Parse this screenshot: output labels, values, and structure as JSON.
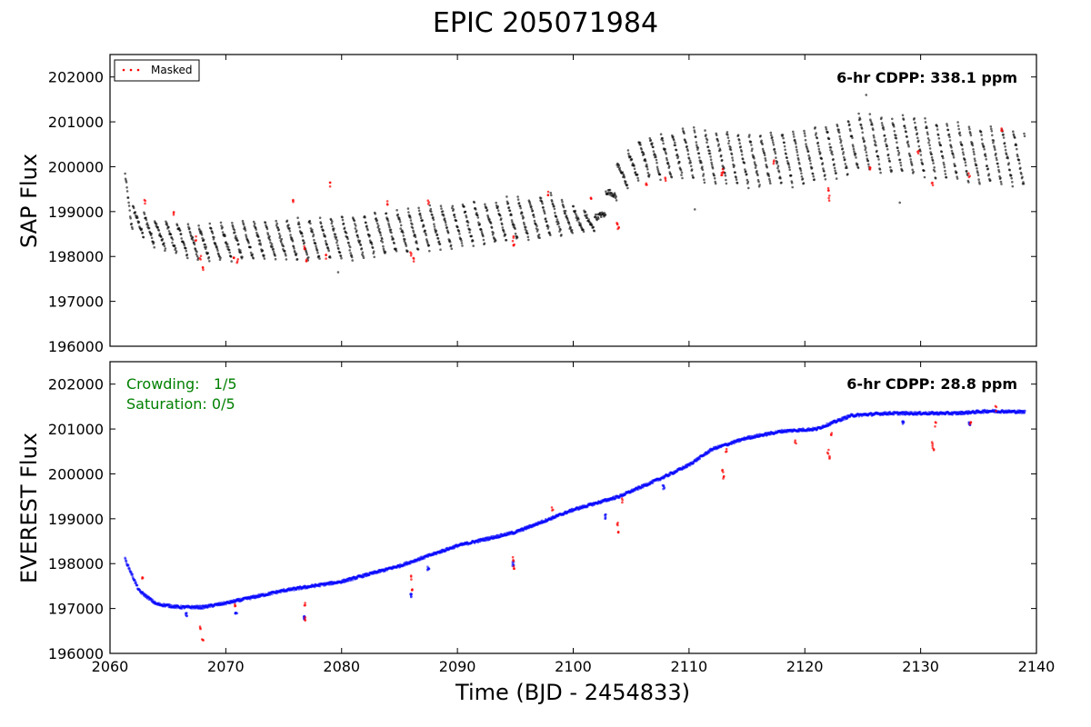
{
  "figure": {
    "title": "EPIC 205071984",
    "xlabel": "Time (BJD - 2454833)"
  },
  "chart_data": [
    {
      "type": "scatter",
      "panel": "top",
      "ylabel": "SAP Flux",
      "xlim": [
        2060,
        2140
      ],
      "ylim": [
        196000,
        202500
      ],
      "xticks": [
        2060,
        2070,
        2080,
        2090,
        2100,
        2110,
        2120,
        2130,
        2140
      ],
      "yticks": [
        196000,
        197000,
        198000,
        199000,
        200000,
        201000,
        202000
      ],
      "annotation": "6-hr CDPP: 338.1 ppm",
      "legend": {
        "position": "top-left",
        "entries": [
          {
            "label": "Masked",
            "color": "#ff0000"
          }
        ]
      },
      "grid": false,
      "series": [
        {
          "name": "",
          "color": "#000000",
          "trend": [
            [
              2061.3,
              199800
            ],
            [
              2061.8,
              198900
            ],
            [
              2064,
              198500
            ],
            [
              2068,
              198300
            ],
            [
              2072,
              198350
            ],
            [
              2080,
              198400
            ],
            [
              2090,
              198700
            ],
            [
              2098,
              198900
            ],
            [
              2102,
              198750
            ],
            [
              2104,
              199800
            ],
            [
              2106,
              200200
            ],
            [
              2110,
              200300
            ],
            [
              2115,
              200150
            ],
            [
              2120,
              200200
            ],
            [
              2125,
              200550
            ],
            [
              2130,
              200450
            ],
            [
              2135,
              200250
            ],
            [
              2139,
              200200
            ]
          ],
          "scatter_width": [
            [
              2061.3,
              100
            ],
            [
              2062,
              300
            ],
            [
              2068,
              500
            ],
            [
              2080,
              600
            ],
            [
              2090,
              600
            ],
            [
              2098,
              600
            ],
            [
              2102,
              200
            ],
            [
              2104,
              500
            ],
            [
              2110,
              700
            ],
            [
              2125,
              800
            ],
            [
              2139,
              800
            ]
          ],
          "outliers": [
            [
              2125.3,
              201600
            ],
            [
              2128.2,
              199200
            ],
            [
              2110.5,
              199050
            ],
            [
              2079.7,
              197650
            ]
          ]
        },
        {
          "name": "Masked",
          "color": "#ff0000",
          "points": [
            [
              2063.0,
              199200
            ],
            [
              2065.5,
              198950
            ],
            [
              2067.4,
              198400
            ],
            [
              2067.8,
              197950
            ],
            [
              2068.0,
              197750
            ],
            [
              2070.7,
              198000
            ],
            [
              2071.0,
              197900
            ],
            [
              2075.8,
              199200
            ],
            [
              2076.8,
              198200
            ],
            [
              2077.0,
              197900
            ],
            [
              2078.7,
              198000
            ],
            [
              2079.0,
              199600
            ],
            [
              2084.0,
              199200
            ],
            [
              2086.0,
              198050
            ],
            [
              2086.2,
              197950
            ],
            [
              2087.5,
              199200
            ],
            [
              2094.8,
              198400
            ],
            [
              2094.9,
              198300
            ],
            [
              2097.8,
              199400
            ],
            [
              2101.5,
              199300
            ],
            [
              2103.8,
              198700
            ],
            [
              2103.9,
              198600
            ],
            [
              2106.3,
              199600
            ],
            [
              2108.0,
              199700
            ],
            [
              2112.8,
              199800
            ],
            [
              2112.9,
              199900
            ],
            [
              2117.3,
              200100
            ],
            [
              2122.0,
              199500
            ],
            [
              2122.1,
              199300
            ],
            [
              2125.6,
              200000
            ],
            [
              2129.8,
              200300
            ],
            [
              2131.0,
              199600
            ],
            [
              2134.2,
              199800
            ],
            [
              2137.0,
              200800
            ]
          ]
        }
      ]
    },
    {
      "type": "scatter",
      "panel": "bottom",
      "ylabel": "EVEREST Flux",
      "xlim": [
        2060,
        2140
      ],
      "ylim": [
        196000,
        202500
      ],
      "xticks": [
        2060,
        2070,
        2080,
        2090,
        2100,
        2110,
        2120,
        2130,
        2140
      ],
      "yticks": [
        196000,
        197000,
        198000,
        199000,
        200000,
        201000,
        202000
      ],
      "annotation": "6-hr CDPP: 28.8 ppm",
      "notes": [
        "Crowding:   1/5",
        "Saturation: 0/5"
      ],
      "grid": false,
      "series": [
        {
          "name": "",
          "color": "#0000ff",
          "trend": [
            [
              2061.3,
              198100
            ],
            [
              2062.5,
              197400
            ],
            [
              2064,
              197100
            ],
            [
              2066,
              197030
            ],
            [
              2068,
              197030
            ],
            [
              2070,
              197120
            ],
            [
              2075,
              197400
            ],
            [
              2080,
              197600
            ],
            [
              2085,
              197950
            ],
            [
              2090,
              198400
            ],
            [
              2095,
              198700
            ],
            [
              2100,
              199200
            ],
            [
              2104,
              199500
            ],
            [
              2108,
              199950
            ],
            [
              2110,
              200200
            ],
            [
              2112,
              200550
            ],
            [
              2115,
              200800
            ],
            [
              2118,
              200950
            ],
            [
              2121,
              201000
            ],
            [
              2124,
              201300
            ],
            [
              2127,
              201350
            ],
            [
              2130,
              201350
            ],
            [
              2133,
              201350
            ],
            [
              2136,
              201400
            ],
            [
              2139,
              201380
            ]
          ],
          "dips": [
            [
              2066.6,
              196850
            ],
            [
              2070.9,
              196900
            ],
            [
              2076.8,
              196800
            ],
            [
              2086.0,
              197300
            ],
            [
              2087.5,
              197900
            ],
            [
              2094.8,
              198000
            ],
            [
              2102.8,
              199050
            ],
            [
              2107.8,
              199700
            ],
            [
              2128.5,
              201150
            ],
            [
              2134.2,
              201100
            ]
          ]
        },
        {
          "name": "Masked",
          "color": "#ff0000",
          "points": [
            [
              2062.8,
              197700
            ],
            [
              2067.8,
              196600
            ],
            [
              2068.0,
              196300
            ],
            [
              2070.8,
              197100
            ],
            [
              2076.8,
              197100
            ],
            [
              2076.9,
              196750
            ],
            [
              2086.0,
              197700
            ],
            [
              2086.1,
              197450
            ],
            [
              2094.8,
              198100
            ],
            [
              2094.9,
              197900
            ],
            [
              2098.2,
              199200
            ],
            [
              2103.8,
              198850
            ],
            [
              2103.9,
              198750
            ],
            [
              2104.2,
              199400
            ],
            [
              2112.9,
              200100
            ],
            [
              2113.0,
              199900
            ],
            [
              2113.2,
              200500
            ],
            [
              2119.2,
              200700
            ],
            [
              2122.0,
              200500
            ],
            [
              2122.1,
              200350
            ],
            [
              2122.3,
              200900
            ],
            [
              2131.0,
              200650
            ],
            [
              2131.1,
              200550
            ],
            [
              2131.3,
              201100
            ],
            [
              2134.3,
              201100
            ],
            [
              2136.5,
              201450
            ]
          ]
        }
      ]
    }
  ]
}
